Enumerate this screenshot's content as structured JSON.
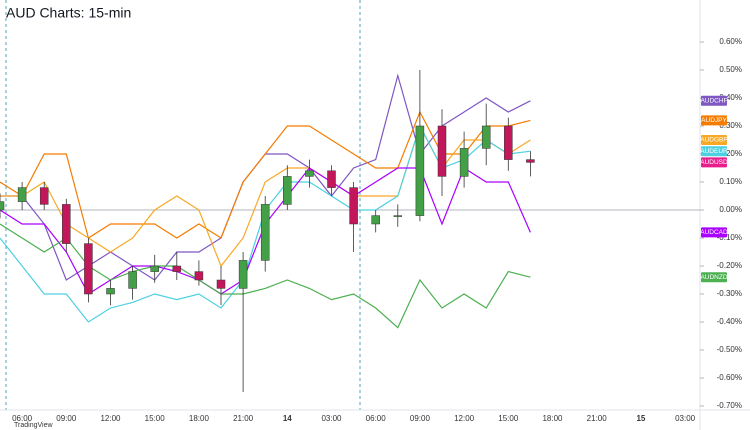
{
  "chart_data": {
    "type": "line",
    "title": "AUD Charts: 15-min",
    "source": "TradingView",
    "categories": [
      null,
      "06:00",
      null,
      "09:00",
      null,
      "12:00",
      null,
      "15:00",
      null,
      "18:00",
      null,
      "21:00",
      null,
      "14",
      null,
      "03:00",
      null,
      "06:00",
      null,
      "09:00",
      null,
      "12:00",
      null,
      "15:00",
      null,
      "18:00",
      null,
      "21:00",
      null,
      "15",
      null,
      "03:00"
    ],
    "series": [
      {
        "name": "AUDCHF",
        "color": "#7e57c2",
        "values": [
          0.05,
          0.05,
          -0.05,
          -0.25,
          -0.2,
          -0.15,
          -0.2,
          -0.25,
          -0.15,
          -0.15,
          -0.1,
          0.1,
          0.2,
          0.2,
          0.15,
          0.05,
          0.15,
          0.18,
          0.48,
          0.2,
          0.3,
          0.35,
          0.4,
          0.35,
          0.39,
          null,
          null,
          null,
          null,
          null,
          null,
          null
        ]
      },
      {
        "name": "AUDJPY",
        "color": "#f57c00",
        "values": [
          0.1,
          0.05,
          0.2,
          0.2,
          -0.1,
          -0.05,
          -0.05,
          -0.05,
          -0.1,
          -0.05,
          -0.1,
          0.1,
          0.2,
          0.3,
          0.3,
          0.25,
          0.2,
          0.15,
          0.15,
          0.35,
          0.2,
          0.2,
          0.3,
          0.3,
          0.32,
          null,
          null,
          null,
          null,
          null,
          null,
          null
        ]
      },
      {
        "name": "AUDGBP",
        "color": "#f9a825",
        "values": [
          0.05,
          0.05,
          0.1,
          -0.05,
          -0.1,
          -0.15,
          -0.1,
          0.0,
          0.05,
          0.0,
          -0.2,
          -0.1,
          0.1,
          0.15,
          0.15,
          0.1,
          0.05,
          0.05,
          0.05,
          0.3,
          0.15,
          0.25,
          0.25,
          0.2,
          0.25,
          null,
          null,
          null,
          null,
          null,
          null,
          null
        ]
      },
      {
        "name": "AUDEUR",
        "color": "#4dd0e1",
        "values": [
          -0.1,
          -0.2,
          -0.3,
          -0.3,
          -0.4,
          -0.35,
          -0.33,
          -0.3,
          -0.32,
          -0.3,
          -0.35,
          -0.25,
          0.0,
          0.1,
          0.1,
          0.05,
          0.0,
          0.0,
          0.05,
          0.3,
          0.15,
          0.18,
          0.25,
          0.2,
          0.21,
          null,
          null,
          null,
          null,
          null,
          null,
          null
        ]
      },
      {
        "name": "AUDCAD",
        "color": "#aa00ff",
        "values": [
          0.0,
          -0.05,
          -0.05,
          -0.15,
          -0.3,
          -0.25,
          -0.2,
          -0.2,
          -0.22,
          -0.25,
          -0.3,
          -0.25,
          -0.05,
          0.05,
          0.15,
          0.1,
          0.05,
          0.1,
          0.15,
          0.15,
          -0.05,
          0.15,
          0.1,
          0.1,
          -0.08,
          null,
          null,
          null,
          null,
          null,
          null,
          null
        ]
      },
      {
        "name": "AUDNZD",
        "color": "#4caf50",
        "values": [
          -0.05,
          -0.1,
          -0.15,
          -0.1,
          -0.2,
          -0.25,
          -0.22,
          -0.2,
          -0.2,
          -0.25,
          -0.3,
          -0.3,
          -0.28,
          -0.25,
          -0.28,
          -0.32,
          -0.3,
          -0.35,
          -0.42,
          -0.25,
          -0.35,
          -0.3,
          -0.35,
          -0.22,
          -0.24,
          null,
          null,
          null,
          null,
          null,
          null,
          null
        ]
      }
    ],
    "candles": {
      "name": "AUDUSD",
      "color": "#e91e8c",
      "color_up": "#43a047",
      "color_down": "#c2185b",
      "open": [
        0.0,
        0.03,
        0.08,
        0.02,
        -0.12,
        -0.3,
        -0.28,
        -0.22,
        -0.2,
        -0.22,
        -0.25,
        -0.28,
        -0.18,
        0.02,
        0.12,
        0.14,
        0.08,
        -0.05,
        -0.02,
        -0.02,
        0.3,
        0.12,
        0.22,
        0.3,
        0.18,
        null,
        null,
        null,
        null,
        null,
        null,
        null
      ],
      "high": [
        0.06,
        0.1,
        0.1,
        0.04,
        -0.1,
        -0.25,
        -0.2,
        -0.16,
        -0.15,
        -0.18,
        -0.2,
        -0.15,
        0.05,
        0.16,
        0.18,
        0.16,
        0.1,
        0.0,
        0.02,
        0.5,
        0.36,
        0.28,
        0.38,
        0.33,
        0.21,
        null,
        null,
        null,
        null,
        null,
        null,
        null
      ],
      "low": [
        -0.03,
        0.0,
        0.0,
        -0.15,
        -0.33,
        -0.34,
        -0.32,
        -0.26,
        -0.25,
        -0.27,
        -0.34,
        -0.65,
        -0.22,
        0.0,
        0.08,
        0.05,
        -0.15,
        -0.08,
        -0.06,
        -0.04,
        0.05,
        0.08,
        0.16,
        0.14,
        0.12,
        null,
        null,
        null,
        null,
        null,
        null,
        null
      ],
      "close": [
        0.03,
        0.08,
        0.02,
        -0.12,
        -0.3,
        -0.28,
        -0.22,
        -0.2,
        -0.22,
        -0.25,
        -0.28,
        -0.18,
        0.02,
        0.12,
        0.14,
        0.08,
        -0.05,
        -0.02,
        -0.02,
        0.3,
        0.12,
        0.22,
        0.3,
        0.18,
        0.17,
        null,
        null,
        null,
        null,
        null,
        null,
        null
      ]
    },
    "ylim": [
      -0.75,
      0.65
    ],
    "yticks": [
      {
        "value": 0.6,
        "label": "0.60%"
      },
      {
        "value": 0.5,
        "label": "0.50%"
      },
      {
        "value": 0.4,
        "label": "0.40%"
      },
      {
        "value": 0.3,
        "label": "0.30%"
      },
      {
        "value": 0.2,
        "label": "0.20%"
      },
      {
        "value": 0.1,
        "label": "0.10%"
      },
      {
        "value": 0.0,
        "label": "0.00%"
      },
      {
        "value": -0.1,
        "label": "-0.10%"
      },
      {
        "value": -0.2,
        "label": "-0.20%"
      },
      {
        "value": -0.3,
        "label": "-0.30%"
      },
      {
        "value": -0.4,
        "label": "-0.40%"
      },
      {
        "value": -0.5,
        "label": "-0.50%"
      },
      {
        "value": -0.6,
        "label": "-0.60%"
      },
      {
        "value": -0.7,
        "label": "-0.70%"
      }
    ],
    "zero_line": true
  }
}
